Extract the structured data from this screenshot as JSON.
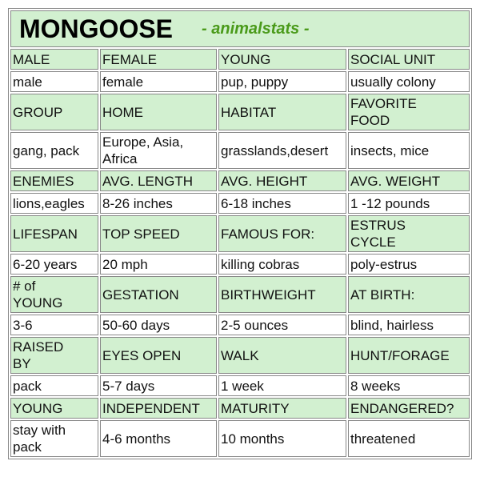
{
  "title": "MONGOOSE",
  "subtitle": "- animalstats -",
  "table": {
    "rows": [
      [
        "MALE",
        "FEMALE",
        "YOUNG",
        "SOCIAL UNIT"
      ],
      [
        "male",
        "female",
        "pup, puppy",
        "usually colony"
      ],
      [
        "GROUP",
        "HOME",
        "HABITAT",
        "FAVORITE\nFOOD"
      ],
      [
        "gang, pack",
        "Europe, Asia,\nAfrica",
        "grasslands,desert",
        "insects, mice"
      ],
      [
        "ENEMIES",
        "AVG. LENGTH",
        "AVG. HEIGHT",
        "AVG. WEIGHT"
      ],
      [
        "lions,eagles",
        "8-26 inches",
        "6-18 inches",
        "1 -12 pounds"
      ],
      [
        "LIFESPAN",
        "TOP SPEED",
        "FAMOUS FOR:",
        "ESTRUS\nCYCLE"
      ],
      [
        "6-20 years",
        "20 mph",
        "killing cobras",
        "poly-estrus"
      ],
      [
        "# of\nYOUNG",
        "GESTATION",
        "BIRTHWEIGHT",
        "AT BIRTH:"
      ],
      [
        "3-6",
        "50-60 days",
        "2-5 ounces",
        "blind, hairless"
      ],
      [
        "RAISED\nBY",
        "EYES OPEN",
        "WALK",
        "HUNT/FORAGE"
      ],
      [
        "pack",
        "5-7 days",
        "1 week",
        "8 weeks"
      ],
      [
        "YOUNG",
        "INDEPENDENT",
        "MATURITY",
        "ENDANGERED?"
      ],
      [
        "stay with\npack",
        "4-6 months",
        "10 months",
        "threatened"
      ]
    ]
  }
}
